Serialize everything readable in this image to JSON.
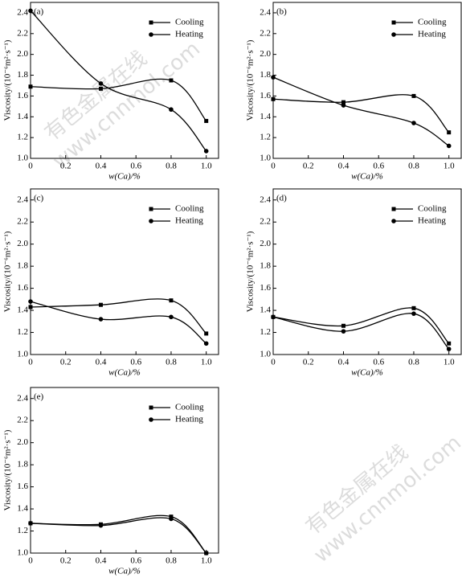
{
  "chart_data": [
    {
      "type": "line",
      "title": "(a)",
      "x_label": "w(Ca)/%",
      "y_label": "Viscosity/(10⁻⁶m²·s⁻¹)",
      "x": [
        0,
        0.4,
        0.8,
        1.0
      ],
      "series": [
        {
          "name": "Cooling",
          "color": "#000000",
          "marker": "square",
          "values": [
            1.69,
            1.67,
            1.75,
            1.36
          ]
        },
        {
          "name": "Heating",
          "color": "#000000",
          "marker": "circle",
          "values": [
            2.42,
            1.72,
            1.47,
            1.07
          ]
        }
      ],
      "xlim": [
        0,
        1.07
      ],
      "ylim": [
        1.0,
        2.5
      ],
      "xticks": [
        0,
        0.2,
        0.4,
        0.6,
        0.8,
        {
          "value": 1.0,
          "label": "1.0"
        }
      ],
      "yticks": [
        {
          "value": 1.0,
          "label": "1.0"
        },
        1.2,
        1.4,
        1.6,
        1.8,
        {
          "value": 2.0,
          "label": "2.0"
        },
        2.2,
        2.4
      ]
    },
    {
      "type": "line",
      "title": "(b)",
      "x_label": "w(Ca)/%",
      "y_label": "Viscosity/(10⁻⁶m²·s⁻¹)",
      "x": [
        0,
        0.4,
        0.8,
        1.0
      ],
      "series": [
        {
          "name": "Cooling",
          "color": "#000000",
          "marker": "square",
          "values": [
            1.57,
            1.54,
            1.6,
            1.25
          ]
        },
        {
          "name": "Heating",
          "color": "#000000",
          "marker": "circle",
          "values": [
            1.78,
            1.51,
            1.34,
            1.12
          ]
        }
      ],
      "xlim": [
        0,
        1.07
      ],
      "ylim": [
        1.0,
        2.5
      ],
      "xticks": [
        0,
        0.2,
        0.4,
        0.6,
        0.8,
        {
          "value": 1.0,
          "label": "1.0"
        }
      ],
      "yticks": [
        {
          "value": 1.0,
          "label": "1.0"
        },
        1.2,
        1.4,
        1.6,
        1.8,
        {
          "value": 2.0,
          "label": "2.0"
        },
        2.2,
        2.4
      ]
    },
    {
      "type": "line",
      "title": "(c)",
      "x_label": "w(Ca)/%",
      "y_label": "Viscosity/(10⁻⁶m²·s⁻¹)",
      "x": [
        0,
        0.4,
        0.8,
        1.0
      ],
      "series": [
        {
          "name": "Cooling",
          "color": "#000000",
          "marker": "square",
          "values": [
            1.43,
            1.45,
            1.49,
            1.19
          ]
        },
        {
          "name": "Heating",
          "color": "#000000",
          "marker": "circle",
          "values": [
            1.48,
            1.32,
            1.34,
            1.1
          ]
        }
      ],
      "xlim": [
        0,
        1.07
      ],
      "ylim": [
        1.0,
        2.5
      ],
      "xticks": [
        0,
        0.2,
        0.4,
        0.6,
        0.8,
        {
          "value": 1.0,
          "label": "1.0"
        }
      ],
      "yticks": [
        {
          "value": 1.0,
          "label": "1.0"
        },
        1.2,
        1.4,
        1.6,
        1.8,
        {
          "value": 2.0,
          "label": "2.0"
        },
        2.2,
        2.4
      ]
    },
    {
      "type": "line",
      "title": "(d)",
      "x_label": "w(Ca)/%",
      "y_label": "Viscosity/(10⁻⁶m²·s⁻¹)",
      "x": [
        0,
        0.4,
        0.8,
        1.0
      ],
      "series": [
        {
          "name": "Cooling",
          "color": "#000000",
          "marker": "square",
          "values": [
            1.34,
            1.26,
            1.42,
            1.1
          ]
        },
        {
          "name": "Heating",
          "color": "#000000",
          "marker": "circle",
          "values": [
            1.34,
            1.21,
            1.37,
            1.05
          ]
        }
      ],
      "xlim": [
        0,
        1.07
      ],
      "ylim": [
        1.0,
        2.5
      ],
      "xticks": [
        0,
        0.2,
        0.4,
        0.6,
        0.8,
        {
          "value": 1.0,
          "label": "1.0"
        }
      ],
      "yticks": [
        {
          "value": 1.0,
          "label": "1.0"
        },
        1.2,
        1.4,
        1.6,
        1.8,
        {
          "value": 2.0,
          "label": "2.0"
        },
        2.2,
        2.4
      ]
    },
    {
      "type": "line",
      "title": "(e)",
      "x_label": "w(Ca)/%",
      "y_label": "Viscosity/(10⁻⁶m²·s⁻¹)",
      "x": [
        0,
        0.4,
        0.8,
        1.0
      ],
      "series": [
        {
          "name": "Cooling",
          "color": "#000000",
          "marker": "square",
          "values": [
            1.27,
            1.26,
            1.33,
            1.0
          ]
        },
        {
          "name": "Heating",
          "color": "#000000",
          "marker": "circle",
          "values": [
            1.27,
            1.25,
            1.31,
            1.0
          ]
        }
      ],
      "xlim": [
        0,
        1.07
      ],
      "ylim": [
        1.0,
        2.5
      ],
      "xticks": [
        0,
        0.2,
        0.4,
        0.6,
        0.8,
        {
          "value": 1.0,
          "label": "1.0"
        }
      ],
      "yticks": [
        {
          "value": 1.0,
          "label": "1.0"
        },
        1.2,
        1.4,
        1.6,
        1.8,
        {
          "value": 2.0,
          "label": "2.0"
        },
        2.2,
        2.4
      ]
    }
  ],
  "watermark": {
    "name": "有色金属在线",
    "url": "www.cnnmol.com"
  }
}
